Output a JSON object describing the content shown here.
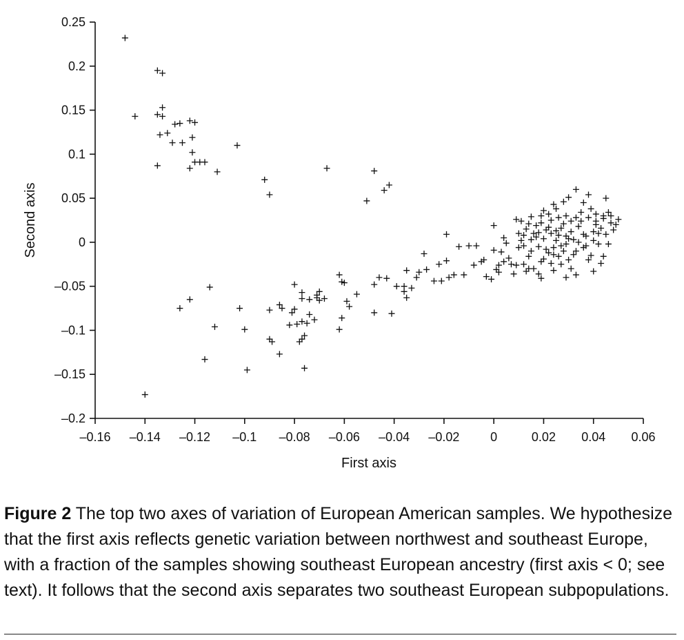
{
  "chart_data": {
    "type": "scatter",
    "marker": "+",
    "xlabel": "First axis",
    "ylabel": "Second axis",
    "xlim": [
      -0.16,
      0.06
    ],
    "ylim": [
      -0.2,
      0.25
    ],
    "xticks": [
      -0.16,
      -0.14,
      -0.12,
      -0.1,
      -0.08,
      -0.06,
      -0.04,
      -0.02,
      0,
      0.02,
      0.04,
      0.06
    ],
    "xtick_labels": [
      "–0.16",
      "–0.14",
      "–0.12",
      "–0.1",
      "–0.08",
      "–0.06",
      "–0.04",
      "–0.02",
      "0",
      "0.02",
      "0.04",
      "0.06"
    ],
    "yticks": [
      0.25,
      0.2,
      0.15,
      0.1,
      0.05,
      0,
      -0.05,
      -0.1,
      -0.15,
      -0.2
    ],
    "ytick_labels": [
      "0.25",
      "0.2",
      "0.15",
      "0.1",
      "0.05",
      "0",
      "–0.05",
      "–0.1",
      "–0.15",
      "–0.2"
    ],
    "points": [
      [
        -0.148,
        0.232
      ],
      [
        -0.135,
        0.195
      ],
      [
        -0.133,
        0.192
      ],
      [
        -0.144,
        0.143
      ],
      [
        -0.133,
        0.153
      ],
      [
        -0.135,
        0.145
      ],
      [
        -0.133,
        0.143
      ],
      [
        -0.122,
        0.138
      ],
      [
        -0.128,
        0.134
      ],
      [
        -0.126,
        0.135
      ],
      [
        -0.12,
        0.136
      ],
      [
        -0.134,
        0.122
      ],
      [
        -0.131,
        0.124
      ],
      [
        -0.129,
        0.113
      ],
      [
        -0.125,
        0.113
      ],
      [
        -0.121,
        0.119
      ],
      [
        -0.121,
        0.102
      ],
      [
        -0.12,
        0.091
      ],
      [
        -0.118,
        0.091
      ],
      [
        -0.116,
        0.091
      ],
      [
        -0.122,
        0.084
      ],
      [
        -0.135,
        0.087
      ],
      [
        -0.111,
        0.08
      ],
      [
        -0.103,
        0.11
      ],
      [
        -0.092,
        0.071
      ],
      [
        -0.09,
        0.054
      ],
      [
        -0.067,
        0.084
      ],
      [
        -0.048,
        0.081
      ],
      [
        -0.042,
        0.065
      ],
      [
        -0.044,
        0.059
      ],
      [
        -0.051,
        0.047
      ],
      [
        -0.126,
        -0.075
      ],
      [
        -0.122,
        -0.065
      ],
      [
        -0.114,
        -0.051
      ],
      [
        -0.112,
        -0.096
      ],
      [
        -0.116,
        -0.133
      ],
      [
        -0.14,
        -0.173
      ],
      [
        -0.102,
        -0.075
      ],
      [
        -0.1,
        -0.099
      ],
      [
        -0.099,
        -0.145
      ],
      [
        -0.09,
        -0.077
      ],
      [
        -0.09,
        -0.11
      ],
      [
        -0.089,
        -0.113
      ],
      [
        -0.086,
        -0.127
      ],
      [
        -0.086,
        -0.071
      ],
      [
        -0.085,
        -0.075
      ],
      [
        -0.08,
        -0.048
      ],
      [
        -0.081,
        -0.08
      ],
      [
        -0.08,
        -0.076
      ],
      [
        -0.077,
        -0.057
      ],
      [
        -0.077,
        -0.064
      ],
      [
        -0.076,
        -0.143
      ],
      [
        -0.082,
        -0.094
      ],
      [
        -0.079,
        -0.093
      ],
      [
        -0.077,
        -0.09
      ],
      [
        -0.075,
        -0.092
      ],
      [
        -0.072,
        -0.088
      ],
      [
        -0.078,
        -0.113
      ],
      [
        -0.077,
        -0.11
      ],
      [
        -0.076,
        -0.106
      ],
      [
        -0.074,
        -0.082
      ],
      [
        -0.074,
        -0.065
      ],
      [
        -0.071,
        -0.06
      ],
      [
        -0.07,
        -0.056
      ],
      [
        -0.07,
        -0.066
      ],
      [
        -0.068,
        -0.064
      ],
      [
        -0.071,
        -0.063
      ],
      [
        -0.062,
        -0.037
      ],
      [
        -0.061,
        -0.045
      ],
      [
        -0.06,
        -0.046
      ],
      [
        -0.059,
        -0.067
      ],
      [
        -0.058,
        -0.073
      ],
      [
        -0.061,
        -0.086
      ],
      [
        -0.062,
        -0.099
      ],
      [
        -0.055,
        -0.059
      ],
      [
        -0.048,
        -0.048
      ],
      [
        -0.046,
        -0.04
      ],
      [
        -0.043,
        -0.041
      ],
      [
        -0.048,
        -0.08
      ],
      [
        -0.041,
        -0.081
      ],
      [
        -0.039,
        -0.05
      ],
      [
        -0.036,
        -0.05
      ],
      [
        -0.036,
        -0.056
      ],
      [
        -0.035,
        -0.063
      ],
      [
        -0.035,
        -0.032
      ],
      [
        -0.033,
        -0.052
      ],
      [
        -0.031,
        -0.04
      ],
      [
        -0.03,
        -0.034
      ],
      [
        -0.027,
        -0.031
      ],
      [
        -0.028,
        -0.013
      ],
      [
        -0.024,
        -0.044
      ],
      [
        -0.022,
        -0.025
      ],
      [
        -0.021,
        -0.044
      ],
      [
        -0.019,
        -0.021
      ],
      [
        -0.018,
        -0.04
      ],
      [
        -0.016,
        -0.037
      ],
      [
        -0.014,
        -0.005
      ],
      [
        -0.019,
        0.009
      ],
      [
        -0.01,
        -0.004
      ],
      [
        -0.012,
        -0.037
      ],
      [
        -0.008,
        -0.026
      ],
      [
        -0.007,
        -0.004
      ],
      [
        -0.005,
        -0.022
      ],
      [
        -0.003,
        -0.039
      ],
      [
        -0.001,
        -0.042
      ],
      [
        -0.004,
        -0.02
      ],
      [
        0.0,
        -0.009
      ],
      [
        0.001,
        -0.031
      ],
      [
        0.002,
        -0.034
      ],
      [
        0.002,
        -0.026
      ],
      [
        0.004,
        -0.022
      ],
      [
        0.003,
        -0.011
      ],
      [
        0.0,
        0.019
      ],
      [
        0.004,
        0.005
      ],
      [
        0.005,
        -0.001
      ],
      [
        0.006,
        -0.018
      ],
      [
        0.007,
        -0.025
      ],
      [
        0.008,
        -0.036
      ],
      [
        0.009,
        -0.026
      ],
      [
        0.01,
        0.01
      ],
      [
        0.011,
        0.002
      ],
      [
        0.012,
        -0.004
      ],
      [
        0.013,
        0.015
      ],
      [
        0.014,
        0.021
      ],
      [
        0.015,
        -0.01
      ],
      [
        0.016,
        -0.03
      ],
      [
        0.017,
        0.006
      ],
      [
        0.018,
        0.011
      ],
      [
        0.019,
        -0.022
      ],
      [
        0.02,
        0.004
      ],
      [
        0.021,
        -0.008
      ],
      [
        0.022,
        0.017
      ],
      [
        0.023,
        0.025
      ],
      [
        0.024,
        -0.014
      ],
      [
        0.025,
        0.002
      ],
      [
        0.026,
        0.008
      ],
      [
        0.027,
        -0.004
      ],
      [
        0.028,
        0.021
      ],
      [
        0.029,
        0.03
      ],
      [
        0.03,
        -0.02
      ],
      [
        0.031,
        0.012
      ],
      [
        0.032,
        0.003
      ],
      [
        0.033,
        -0.01
      ],
      [
        0.034,
        0.018
      ],
      [
        0.035,
        0.024
      ],
      [
        0.036,
        -0.006
      ],
      [
        0.037,
        0.007
      ],
      [
        0.038,
        0.028
      ],
      [
        0.039,
        -0.015
      ],
      [
        0.04,
        0.012
      ],
      [
        0.041,
        0.02
      ],
      [
        0.042,
        -0.002
      ],
      [
        0.043,
        0.016
      ],
      [
        0.044,
        0.027
      ],
      [
        0.045,
        0.009
      ],
      [
        0.046,
        0.034
      ],
      [
        0.047,
        0.022
      ],
      [
        0.048,
        0.014
      ],
      [
        0.05,
        0.026
      ],
      [
        0.033,
        0.06
      ],
      [
        0.038,
        0.054
      ],
      [
        0.045,
        0.05
      ],
      [
        0.03,
        0.051
      ],
      [
        0.028,
        0.046
      ],
      [
        0.024,
        0.043
      ],
      [
        0.036,
        0.045
      ],
      [
        0.041,
        0.032
      ],
      [
        0.044,
        0.03
      ],
      [
        0.02,
        0.036
      ],
      [
        0.019,
        0.03
      ],
      [
        0.015,
        0.029
      ],
      [
        0.011,
        0.024
      ],
      [
        0.009,
        0.026
      ],
      [
        0.043,
        -0.024
      ],
      [
        0.04,
        -0.033
      ],
      [
        0.033,
        -0.037
      ],
      [
        0.031,
        -0.03
      ],
      [
        0.029,
        -0.04
      ],
      [
        0.019,
        -0.041
      ],
      [
        0.018,
        -0.036
      ],
      [
        0.014,
        -0.03
      ],
      [
        0.012,
        -0.025
      ],
      [
        0.013,
        -0.033
      ],
      [
        0.024,
        -0.032
      ],
      [
        0.027,
        -0.025
      ],
      [
        0.038,
        -0.02
      ],
      [
        0.044,
        -0.016
      ],
      [
        0.046,
        -0.002
      ],
      [
        0.023,
        0.01
      ],
      [
        0.025,
        0.013
      ],
      [
        0.027,
        0.016
      ],
      [
        0.021,
        0.014
      ],
      [
        0.017,
        0.019
      ],
      [
        0.031,
        0.024
      ],
      [
        0.035,
        0.034
      ],
      [
        0.039,
        0.038
      ],
      [
        0.018,
        -0.005
      ],
      [
        0.022,
        -0.012
      ],
      [
        0.026,
        -0.016
      ],
      [
        0.028,
        -0.01
      ],
      [
        0.032,
        -0.014
      ],
      [
        0.034,
        0.0
      ],
      [
        0.036,
        0.009
      ],
      [
        0.015,
        0.003
      ],
      [
        0.016,
        0.01
      ],
      [
        0.012,
        0.008
      ],
      [
        0.01,
        -0.006
      ],
      [
        0.014,
        -0.016
      ],
      [
        0.02,
        -0.019
      ],
      [
        0.024,
        -0.006
      ],
      [
        0.029,
        0.007
      ],
      [
        0.03,
        0.004
      ],
      [
        0.026,
        0.028
      ],
      [
        0.022,
        0.032
      ],
      [
        0.04,
        0.002
      ],
      [
        0.042,
        0.01
      ],
      [
        0.037,
        -0.004
      ],
      [
        0.041,
        0.024
      ],
      [
        0.047,
        0.03
      ],
      [
        0.049,
        0.02
      ],
      [
        0.023,
        -0.024
      ],
      [
        0.019,
        0.022
      ],
      [
        0.033,
        0.028
      ],
      [
        0.025,
        0.038
      ],
      [
        0.029,
        -0.002
      ]
    ]
  },
  "caption": {
    "label": "Figure 2",
    "text": "  The top two axes of variation of European American samples. We hypothesize that the first axis reflects genetic variation between northwest and southeast Europe, with a fraction of the samples showing southeast European ancestry (first axis < 0; see text). It follows that the second axis separates two southeast European subpopulations."
  }
}
